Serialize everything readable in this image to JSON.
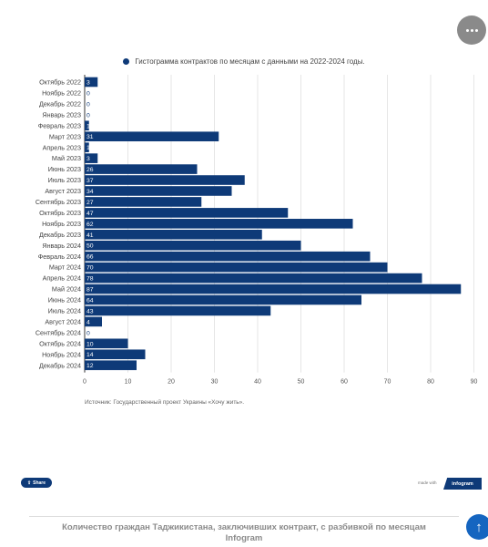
{
  "menu": {
    "icon": "more-dots-icon"
  },
  "colors": {
    "bar": "#0e3a78",
    "axis_text": "#444444",
    "grid": "#e6e6e6",
    "scroll_button": "#1565c0"
  },
  "chart_data": {
    "type": "bar",
    "orientation": "horizontal",
    "title": "Гистограмма контрактов по месяцам с данными на 2022-2024 годы.",
    "categories": [
      "Октябрь 2022",
      "Ноябрь 2022",
      "Декабрь 2022",
      "Январь 2023",
      "Февраль 2023",
      "Март 2023",
      "Апрель 2023",
      "Май 2023",
      "Июнь 2023",
      "Июль 2023",
      "Август 2023",
      "Сентябрь 2023",
      "Октябрь 2023",
      "Ноябрь 2023",
      "Декабрь 2023",
      "Январь 2024",
      "Февраль 2024",
      "Март 2024",
      "Апрель 2024",
      "Май 2024",
      "Июнь 2024",
      "Июль 2024",
      "Август 2024",
      "Сентябрь 2024",
      "Октябрь 2024",
      "Ноябрь 2024",
      "Декабрь 2024"
    ],
    "values": [
      3,
      0,
      0,
      0,
      1,
      31,
      1,
      3,
      26,
      37,
      34,
      27,
      47,
      62,
      41,
      50,
      66,
      70,
      78,
      87,
      64,
      43,
      4,
      0,
      10,
      14,
      12
    ],
    "xlim": [
      0,
      90
    ],
    "xticks": [
      0,
      10,
      20,
      30,
      40,
      50,
      60,
      70,
      80,
      90
    ],
    "grid": true,
    "legend": "top-center"
  },
  "source": "Источник: Государственный проект Украины «Хочу жить».",
  "share": {
    "label": "Share",
    "icon": "share-icon"
  },
  "made_with": "made with",
  "brand": "infogram",
  "footer": {
    "title": "Количество граждан Таджикистана, заключивших контракт, с разбивкой по месяцам",
    "subtitle": "Infogram"
  },
  "scroll_top": {
    "icon": "arrow-up-icon",
    "glyph": "↑"
  }
}
